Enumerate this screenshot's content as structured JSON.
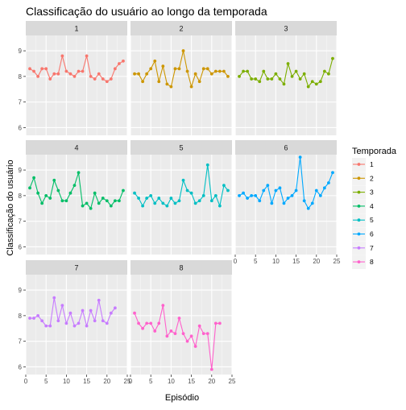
{
  "chart_data": {
    "type": "line",
    "title": "Classificação do usuário ao longo da temporada",
    "xlabel": "Episódio",
    "ylabel": "Classificação do usuário",
    "legend_title": "Temporada",
    "legend_position": "right",
    "xlim": [
      0,
      25
    ],
    "ylim": [
      5.7,
      9.6
    ],
    "x_ticks": [
      0,
      5,
      10,
      15,
      20,
      25
    ],
    "y_ticks": [
      6,
      7,
      8,
      9
    ],
    "grid": true,
    "series": [
      {
        "name": "1",
        "color": "#F8766D",
        "x": [
          1,
          2,
          3,
          4,
          5,
          6,
          7,
          8,
          9,
          10,
          11,
          12,
          13,
          14,
          15,
          16,
          17,
          18,
          19,
          20,
          21,
          22,
          23,
          24
        ],
        "values": [
          8.3,
          8.2,
          8.0,
          8.3,
          8.3,
          7.9,
          8.1,
          8.1,
          8.8,
          8.2,
          8.1,
          8.0,
          8.2,
          8.2,
          8.8,
          8.0,
          7.9,
          8.1,
          7.9,
          7.8,
          7.9,
          8.3,
          8.5,
          8.6
        ]
      },
      {
        "name": "2",
        "color": "#CD9600",
        "x": [
          1,
          2,
          3,
          4,
          5,
          6,
          7,
          8,
          9,
          10,
          11,
          12,
          13,
          14,
          15,
          16,
          17,
          18,
          19,
          20,
          21,
          22,
          23,
          24
        ],
        "values": [
          8.1,
          8.1,
          7.8,
          8.1,
          8.3,
          8.6,
          7.8,
          8.4,
          7.7,
          7.6,
          8.3,
          8.3,
          9.0,
          8.2,
          7.6,
          8.1,
          7.8,
          8.3,
          8.3,
          8.1,
          8.2,
          8.2,
          8.2,
          8.0
        ]
      },
      {
        "name": "3",
        "color": "#7CAE00",
        "x": [
          1,
          2,
          3,
          4,
          5,
          6,
          7,
          8,
          9,
          10,
          11,
          12,
          13,
          14,
          15,
          16,
          17,
          18,
          19,
          20,
          21,
          22,
          23,
          24
        ],
        "values": [
          8.0,
          8.2,
          8.2,
          7.9,
          7.9,
          7.8,
          8.2,
          7.9,
          7.9,
          8.1,
          7.9,
          7.7,
          8.5,
          8.0,
          8.2,
          7.9,
          8.1,
          7.6,
          7.8,
          7.7,
          7.8,
          8.2,
          8.1,
          8.7
        ]
      },
      {
        "name": "4",
        "color": "#00BE67",
        "x": [
          1,
          2,
          3,
          4,
          5,
          6,
          7,
          8,
          9,
          10,
          11,
          12,
          13,
          14,
          15,
          16,
          17,
          18,
          19,
          20,
          21,
          22,
          23,
          24
        ],
        "values": [
          8.3,
          8.7,
          8.1,
          7.7,
          8.0,
          7.9,
          8.6,
          8.2,
          7.8,
          7.8,
          8.1,
          8.4,
          8.9,
          7.6,
          7.7,
          7.5,
          8.1,
          7.7,
          7.9,
          7.8,
          7.6,
          7.8,
          7.8,
          8.2
        ]
      },
      {
        "name": "5",
        "color": "#00BFC4",
        "x": [
          1,
          2,
          3,
          4,
          5,
          6,
          7,
          8,
          9,
          10,
          11,
          12,
          13,
          14,
          15,
          16,
          17,
          18,
          19,
          20,
          21,
          22,
          23,
          24
        ],
        "values": [
          8.1,
          7.9,
          7.6,
          7.9,
          8.0,
          7.7,
          7.9,
          7.7,
          7.6,
          7.9,
          7.7,
          7.8,
          8.6,
          8.2,
          8.1,
          7.7,
          7.8,
          8.0,
          9.2,
          7.8,
          8.0,
          7.6,
          8.4,
          8.2
        ]
      },
      {
        "name": "6",
        "color": "#00A9FF",
        "x": [
          1,
          2,
          3,
          4,
          5,
          6,
          7,
          8,
          9,
          10,
          11,
          12,
          13,
          14,
          15,
          16,
          17,
          18,
          19,
          20,
          21,
          22,
          23,
          24
        ],
        "values": [
          8.0,
          8.1,
          7.9,
          8.0,
          8.0,
          7.8,
          8.2,
          8.4,
          7.7,
          8.2,
          8.3,
          7.7,
          7.9,
          8.0,
          8.2,
          9.5,
          7.8,
          7.5,
          7.7,
          8.2,
          8.0,
          8.3,
          8.5,
          8.9
        ]
      },
      {
        "name": "7",
        "color": "#C77CFF",
        "x": [
          1,
          2,
          3,
          4,
          5,
          6,
          7,
          8,
          9,
          10,
          11,
          12,
          13,
          14,
          15,
          16,
          17,
          18,
          19,
          20,
          21,
          22
        ],
        "values": [
          7.9,
          7.9,
          8.0,
          7.8,
          7.6,
          7.6,
          8.7,
          7.8,
          8.4,
          7.7,
          8.1,
          7.6,
          7.7,
          8.2,
          7.6,
          8.2,
          7.8,
          8.6,
          7.8,
          7.7,
          8.1,
          8.3
        ]
      },
      {
        "name": "8",
        "color": "#FF61CC",
        "x": [
          1,
          2,
          3,
          4,
          5,
          6,
          7,
          8,
          9,
          10,
          11,
          12,
          13,
          14,
          15,
          16,
          17,
          18,
          19,
          20,
          21,
          22
        ],
        "values": [
          8.1,
          7.7,
          7.5,
          7.7,
          7.7,
          7.4,
          7.7,
          8.4,
          7.2,
          7.4,
          7.3,
          7.9,
          7.3,
          7.0,
          7.2,
          6.8,
          7.6,
          7.3,
          7.3,
          5.9,
          7.7,
          7.7
        ]
      }
    ]
  }
}
